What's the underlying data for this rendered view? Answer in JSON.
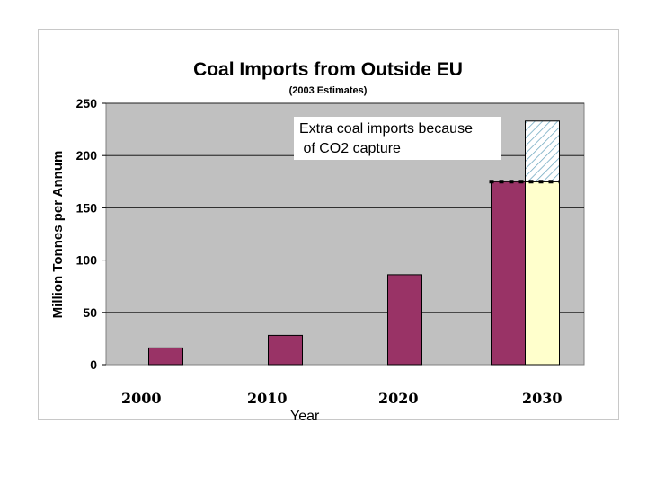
{
  "chart_data": {
    "type": "bar",
    "title": "Coal Imports from Outside EU",
    "subtitle": "(2003 Estimates)",
    "xlabel": "Year",
    "ylabel": "Million Tonnes per Annum",
    "ylim": [
      0,
      250
    ],
    "yticks": [
      "0",
      "50",
      "100",
      "150",
      "200",
      "250"
    ],
    "categories": [
      "2000",
      "2010",
      "2020",
      "2030"
    ],
    "series": [
      {
        "values": [
          16,
          28,
          86,
          175
        ]
      }
    ],
    "extra_bar": {
      "category": "2030",
      "base": 175,
      "extra": 58
    },
    "annotation": {
      "line1": "Extra coal imports because",
      "line2": " of CO2 capture"
    },
    "grid": true,
    "colors": {
      "bar": "#993366",
      "plot_bg": "#c0c0c0",
      "extra_fill": "#ffffcc",
      "hatch": "#6fa8c0",
      "gridline": "#000000"
    }
  }
}
